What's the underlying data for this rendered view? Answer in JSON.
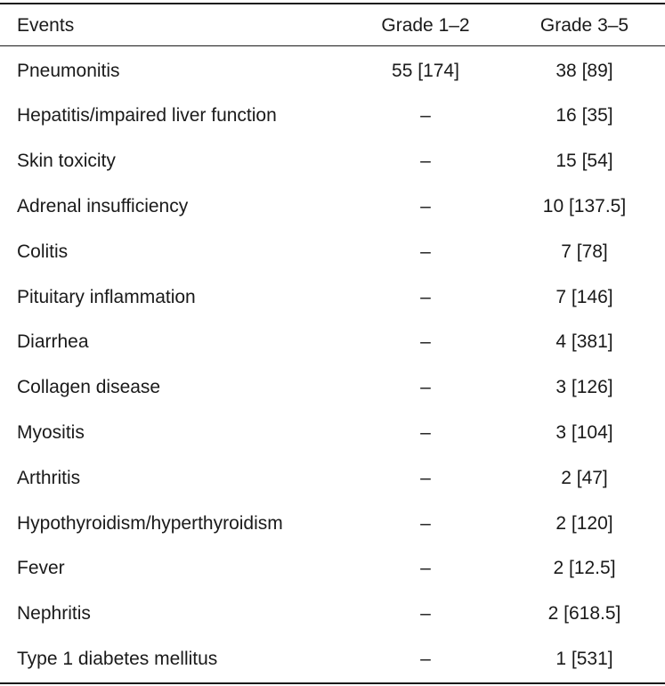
{
  "table": {
    "headers": {
      "events": "Events",
      "grade_1_2": "Grade 1–2",
      "grade_3_5": "Grade 3–5"
    },
    "rows": [
      {
        "event": "Pneumonitis",
        "grade_1_2": "55 [174]",
        "grade_3_5": "38 [89]"
      },
      {
        "event": "Hepatitis/impaired liver function",
        "grade_1_2": "–",
        "grade_3_5": "16 [35]"
      },
      {
        "event": "Skin toxicity",
        "grade_1_2": "–",
        "grade_3_5": "15 [54]"
      },
      {
        "event": "Adrenal insufficiency",
        "grade_1_2": "–",
        "grade_3_5": "10 [137.5]"
      },
      {
        "event": "Colitis",
        "grade_1_2": "–",
        "grade_3_5": "7 [78]"
      },
      {
        "event": "Pituitary inflammation",
        "grade_1_2": "–",
        "grade_3_5": "7 [146]"
      },
      {
        "event": "Diarrhea",
        "grade_1_2": "–",
        "grade_3_5": "4 [381]"
      },
      {
        "event": "Collagen disease",
        "grade_1_2": "–",
        "grade_3_5": "3 [126]"
      },
      {
        "event": "Myositis",
        "grade_1_2": "–",
        "grade_3_5": "3 [104]"
      },
      {
        "event": "Arthritis",
        "grade_1_2": "–",
        "grade_3_5": "2 [47]"
      },
      {
        "event": "Hypothyroidism/hyperthyroidism",
        "grade_1_2": "–",
        "grade_3_5": "2 [120]"
      },
      {
        "event": "Fever",
        "grade_1_2": "–",
        "grade_3_5": "2 [12.5]"
      },
      {
        "event": "Nephritis",
        "grade_1_2": "–",
        "grade_3_5": "2 [618.5]"
      },
      {
        "event": "Type 1 diabetes mellitus",
        "grade_1_2": "–",
        "grade_3_5": "1 [531]"
      }
    ]
  }
}
